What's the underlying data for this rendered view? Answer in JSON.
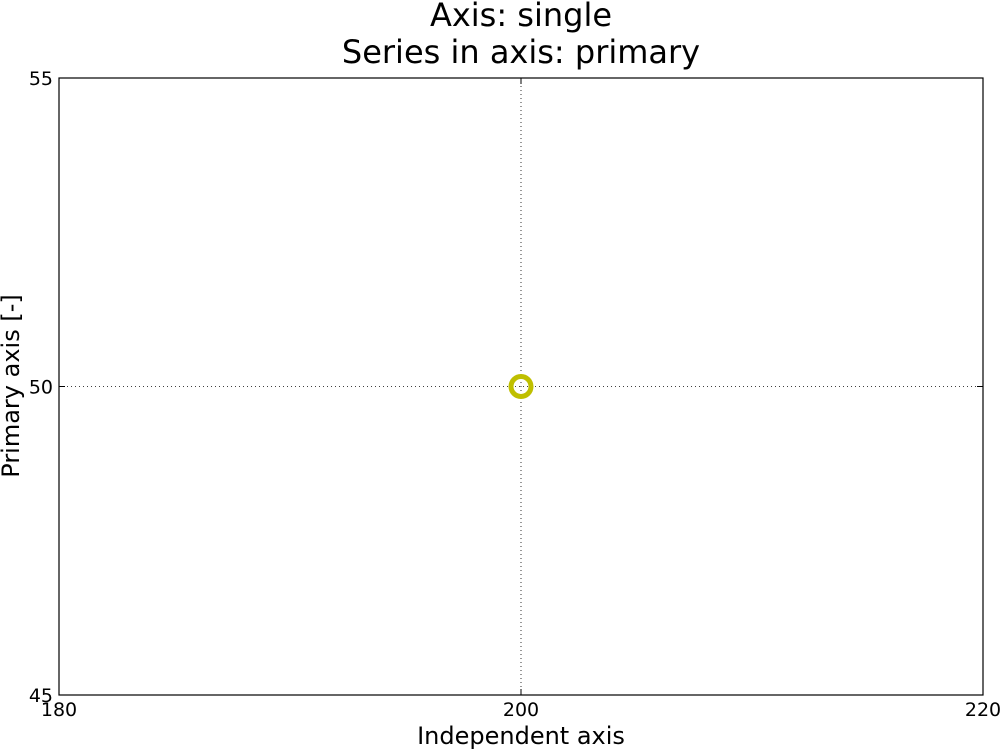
{
  "chart_data": {
    "type": "scatter",
    "title": "Axis: single",
    "subtitle": "Series in axis: primary",
    "xlabel": "Independent axis",
    "ylabel": "Primary axis [-]",
    "xlim": [
      180,
      220
    ],
    "ylim": [
      45,
      55
    ],
    "xticks": [
      "180",
      "200",
      "220"
    ],
    "yticks": [
      "45",
      "50",
      "55"
    ],
    "xtick_values": [
      180,
      200,
      220
    ],
    "ytick_values": [
      45,
      50,
      55
    ],
    "grid": true,
    "series": [
      {
        "marker": "open-circle",
        "color": "#bfbf00",
        "points": [
          {
            "x": 200,
            "y": 50
          }
        ]
      }
    ]
  }
}
